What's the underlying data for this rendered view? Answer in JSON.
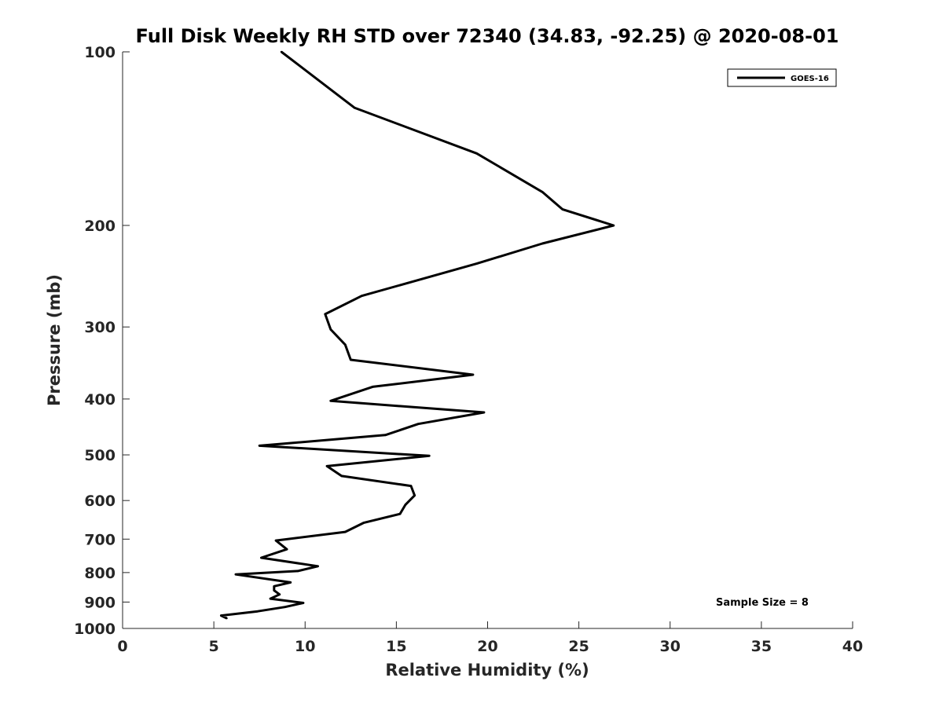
{
  "chart_data": {
    "type": "line",
    "title": "Full Disk Weekly RH STD over 72340 (34.83, -92.25) @ 2020-08-01",
    "xlabel": "Relative Humidity (%)",
    "ylabel": "Pressure (mb)",
    "xlim": [
      0,
      40
    ],
    "ylim": [
      100,
      1000
    ],
    "y_scale": "log",
    "y_reversed": true,
    "x_ticks": [
      0,
      5,
      10,
      15,
      20,
      25,
      30,
      35,
      40
    ],
    "y_ticks": [
      100,
      200,
      300,
      400,
      500,
      600,
      700,
      800,
      900,
      1000
    ],
    "grid": false,
    "legend_position": "top-right",
    "annotation": "Sample Size = 8",
    "series": [
      {
        "name": "GOES-16",
        "color": "#000000",
        "points": [
          [
            8.7,
            100
          ],
          [
            12.7,
            125
          ],
          [
            19.4,
            150
          ],
          [
            23.0,
            175
          ],
          [
            24.1,
            187.5
          ],
          [
            26.9,
            200
          ],
          [
            23.0,
            215
          ],
          [
            19.4,
            233
          ],
          [
            13.1,
            265
          ],
          [
            11.1,
            285
          ],
          [
            11.4,
            303
          ],
          [
            12.2,
            322
          ],
          [
            12.5,
            342
          ],
          [
            19.2,
            363
          ],
          [
            13.7,
            381
          ],
          [
            11.4,
            403
          ],
          [
            19.8,
            422
          ],
          [
            16.2,
            442
          ],
          [
            14.4,
            462
          ],
          [
            7.5,
            482
          ],
          [
            16.8,
            502
          ],
          [
            11.2,
            523
          ],
          [
            12.0,
            544
          ],
          [
            15.8,
            566
          ],
          [
            16.0,
            588
          ],
          [
            15.5,
            610
          ],
          [
            15.2,
            633
          ],
          [
            13.2,
            656
          ],
          [
            12.2,
            680
          ],
          [
            8.4,
            704
          ],
          [
            9.0,
            729
          ],
          [
            7.6,
            754
          ],
          [
            10.7,
            780
          ],
          [
            9.6,
            795
          ],
          [
            6.2,
            806
          ],
          [
            9.2,
            832
          ],
          [
            8.3,
            845
          ],
          [
            8.3,
            859
          ],
          [
            8.6,
            873
          ],
          [
            8.1,
            888
          ],
          [
            9.9,
            903
          ],
          [
            8.9,
            918
          ],
          [
            7.4,
            934
          ],
          [
            5.4,
            950
          ],
          [
            5.7,
            960
          ]
        ]
      }
    ]
  }
}
